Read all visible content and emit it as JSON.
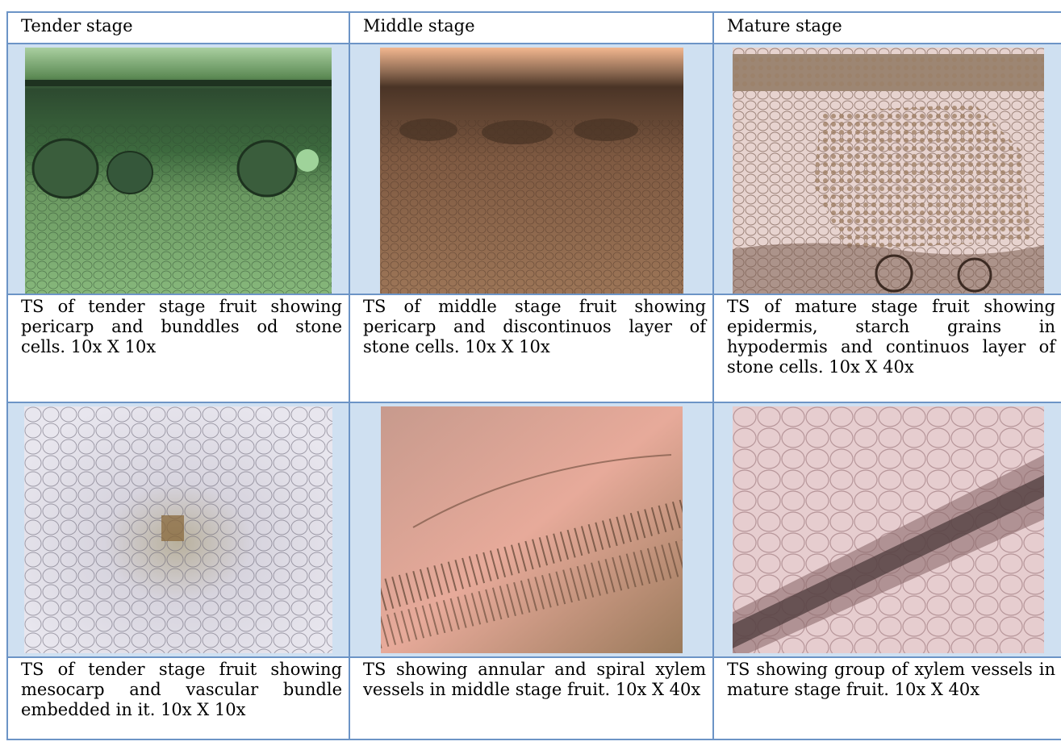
{
  "headers": [
    "Tender stage",
    "Middle stage",
    "Mature stage"
  ],
  "images": [
    {
      "name": "tender-pericarp-micrograph",
      "tint": "#7fae73"
    },
    {
      "name": "middle-pericarp-micrograph",
      "tint": "#a4775a"
    },
    {
      "name": "mature-epidermis-micrograph",
      "tint": "#cdb3ab"
    },
    {
      "name": "tender-mesocarp-micrograph",
      "tint": "#d7d5de"
    },
    {
      "name": "middle-xylem-micrograph",
      "tint": "#bd8f80"
    },
    {
      "name": "mature-xylem-micrograph",
      "tint": "#d9b9bb"
    }
  ],
  "captions": [
    "TS of tender stage fruit showing pericarp and bunddles od stone cells. 10x X 10x",
    "TS of middle stage fruit showing pericarp and discontinuos layer of stone cells. 10x X 10x",
    "TS of mature stage fruit showing epidermis, starch grains in hypodermis and continuos layer of stone cells. 10x X 40x",
    "TS of tender stage fruit showing mesocarp and vascular bundle embedded in it. 10x X 10x",
    "TS showing annular and spiral xylem vessels in middle stage fruit. 10x X 40x",
    "TS showing group of xylem vessels in mature stage fruit. 10x X 40x"
  ]
}
